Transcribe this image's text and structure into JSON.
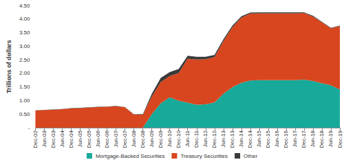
{
  "chart_data": {
    "type": "area",
    "stacked": true,
    "grid": false,
    "legend": "bottom",
    "y_label": "Trillions of dollars",
    "categories": [
      "Dec-02",
      "Jun-03",
      "Dec-03",
      "Jun-04",
      "Dec-04",
      "Jun-05",
      "Dec-05",
      "Jun-06",
      "Dec-06",
      "Jun-07",
      "Dec-07",
      "Jun-08",
      "Dec-08",
      "Jun-09",
      "Dec-09",
      "Jun-10",
      "Dec-10",
      "Jun-11",
      "Dec-11",
      "Jun-12",
      "Dec-12",
      "Jun-13",
      "Dec-13",
      "Jun-14",
      "Dec-14",
      "Jun-15",
      "Dec-15",
      "Jun-16",
      "Dec-16",
      "Jun-17",
      "Dec-17",
      "Jun-18",
      "Dec-18",
      "Jun-19",
      "Dec-19"
    ],
    "series": [
      {
        "name": "Mortgage-Backed Securities",
        "color": "#17a99a",
        "values": [
          0,
          0,
          0,
          0,
          0,
          0,
          0,
          0,
          0,
          0,
          0,
          0,
          0,
          0.5,
          0.9,
          1.12,
          0.99,
          0.92,
          0.85,
          0.86,
          0.93,
          1.25,
          1.49,
          1.65,
          1.74,
          1.75,
          1.75,
          1.75,
          1.75,
          1.75,
          1.77,
          1.72,
          1.64,
          1.56,
          1.41
        ]
      },
      {
        "name": "Treasury Securities",
        "color": "#d8461f",
        "values": [
          0.63,
          0.65,
          0.66,
          0.68,
          0.71,
          0.72,
          0.74,
          0.76,
          0.77,
          0.79,
          0.75,
          0.48,
          0.48,
          0.65,
          0.78,
          0.78,
          1.02,
          1.62,
          1.66,
          1.66,
          1.67,
          1.94,
          2.21,
          2.4,
          2.46,
          2.46,
          2.46,
          2.46,
          2.46,
          2.46,
          2.45,
          2.37,
          2.24,
          2.1,
          2.33
        ]
      },
      {
        "name": "Other",
        "color": "#3a3a3a",
        "values": [
          0.01,
          0.01,
          0.01,
          0.01,
          0.01,
          0.01,
          0.01,
          0.01,
          0.01,
          0.01,
          0.01,
          0.01,
          0.02,
          0.1,
          0.15,
          0.15,
          0.15,
          0.11,
          0.1,
          0.09,
          0.08,
          0.07,
          0.06,
          0.05,
          0.04,
          0.04,
          0.04,
          0.04,
          0.04,
          0.04,
          0.03,
          0.03,
          0.02,
          0.02,
          0.02
        ]
      }
    ],
    "ylim": [
      0,
      4.5
    ],
    "yticks": [
      {
        "value": 0,
        "label": "-"
      },
      {
        "value": 0.5,
        "label": "0.50"
      },
      {
        "value": 1,
        "label": "1.00"
      },
      {
        "value": 1.5,
        "label": "1.50"
      },
      {
        "value": 2,
        "label": "2.00"
      },
      {
        "value": 2.5,
        "label": "2.50"
      },
      {
        "value": 3,
        "label": "3.00"
      },
      {
        "value": 3.5,
        "label": "3.50"
      },
      {
        "value": 4,
        "label": "4.00"
      },
      {
        "value": 4.5,
        "label": "4.50"
      }
    ]
  }
}
